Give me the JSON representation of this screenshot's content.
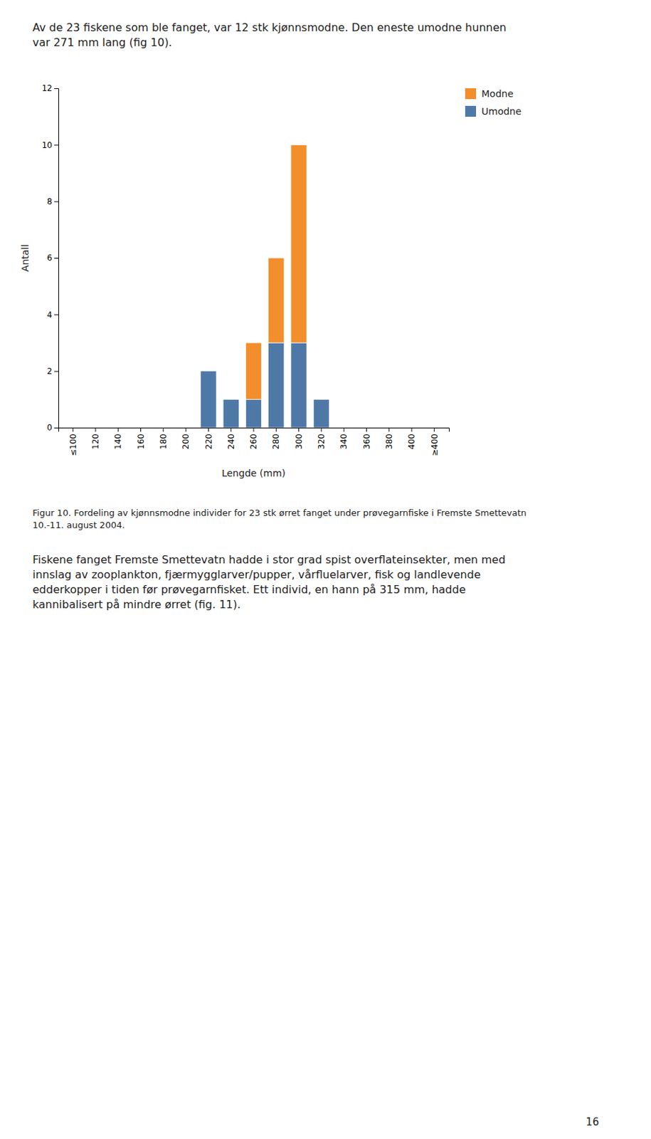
{
  "chart_data": {
    "type": "bar",
    "stacked": true,
    "title": "Figur 10. Fordeling av kjønnsmodne individer for 23 stk ørret fanget under prøvegarnfiske i Fremste Smettevatn\n10.-11. august 2004.",
    "annotations": [
      "Av de 23 fiskene som ble fanget, var 12 stk kjønnsmodne. Den eneste umodne hunnen\nvar 271 mm lang (fig 10).",
      "Fiskene fanget Fremste Smettevatn hadde i stor grad spist overflateinsekter, men med\ninnslag av zooplankton, fjærmygglarver/pupper, vårfluelarver, fisk og landlevende\nedderkopper i tiden før prøvegarnfisket. Ett individ, en hann på 315 mm, hadde\nkannibalisert på mindre ørret (fig. 11).",
      "16"
    ],
    "x_label": "Lengde (mm)",
    "y_label": "Antall",
    "categories": [
      "≤100",
      "120",
      "140",
      "160",
      "180",
      "200",
      "220",
      "240",
      "260",
      "280",
      "300",
      "320",
      "340",
      "360",
      "380",
      "400",
      "≥400"
    ],
    "series": [
      {
        "name": "Umodne",
        "values": [
          0,
          0,
          0,
          0,
          0,
          0,
          2,
          1,
          1,
          3,
          3,
          1,
          0,
          0,
          0,
          0,
          0
        ]
      },
      {
        "name": "Modne",
        "values": [
          0,
          0,
          0,
          0,
          0,
          0,
          0,
          0,
          2,
          3,
          7,
          0,
          0,
          0,
          0,
          0,
          0
        ]
      }
    ],
    "ylim": [
      0,
      12
    ],
    "yticks": [
      0,
      2,
      4,
      6,
      8,
      10,
      12
    ],
    "grid": false,
    "legend": "right"
  }
}
